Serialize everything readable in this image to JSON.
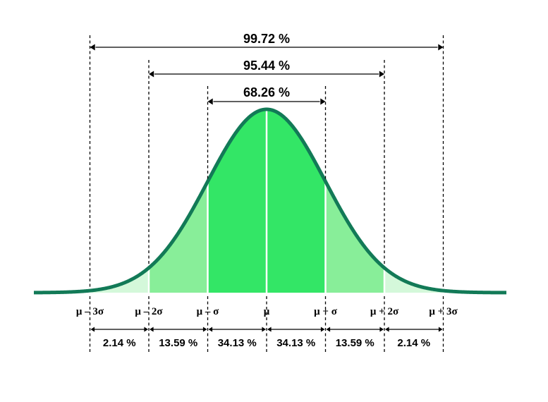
{
  "colors": {
    "curve": "#127a57",
    "region_1sigma": "#33e666",
    "region_2sigma": "#88ee99",
    "region_3sigma": "#d4f8da",
    "divider": "#ffffff"
  },
  "brackets": [
    {
      "label": "99.72 %",
      "from": -3,
      "to": 3
    },
    {
      "label": "95.44 %",
      "from": -2,
      "to": 2
    },
    {
      "label": "68.26 %",
      "from": -1,
      "to": 1
    }
  ],
  "sigma_labels": [
    "μ – 3σ",
    "μ – 2σ",
    "μ – σ",
    "μ",
    "μ + σ",
    "μ + 2σ",
    "μ + 3σ"
  ],
  "segments": [
    {
      "label": "2.14 %",
      "from": -3,
      "to": -2
    },
    {
      "label": "13.59 %",
      "from": -2,
      "to": -1
    },
    {
      "label": "34.13 %",
      "from": -1,
      "to": 0
    },
    {
      "label": "34.13 %",
      "from": 0,
      "to": 1
    },
    {
      "label": "13.59 %",
      "from": 1,
      "to": 2
    },
    {
      "label": "2.14 %",
      "from": 2,
      "to": 3
    }
  ]
}
